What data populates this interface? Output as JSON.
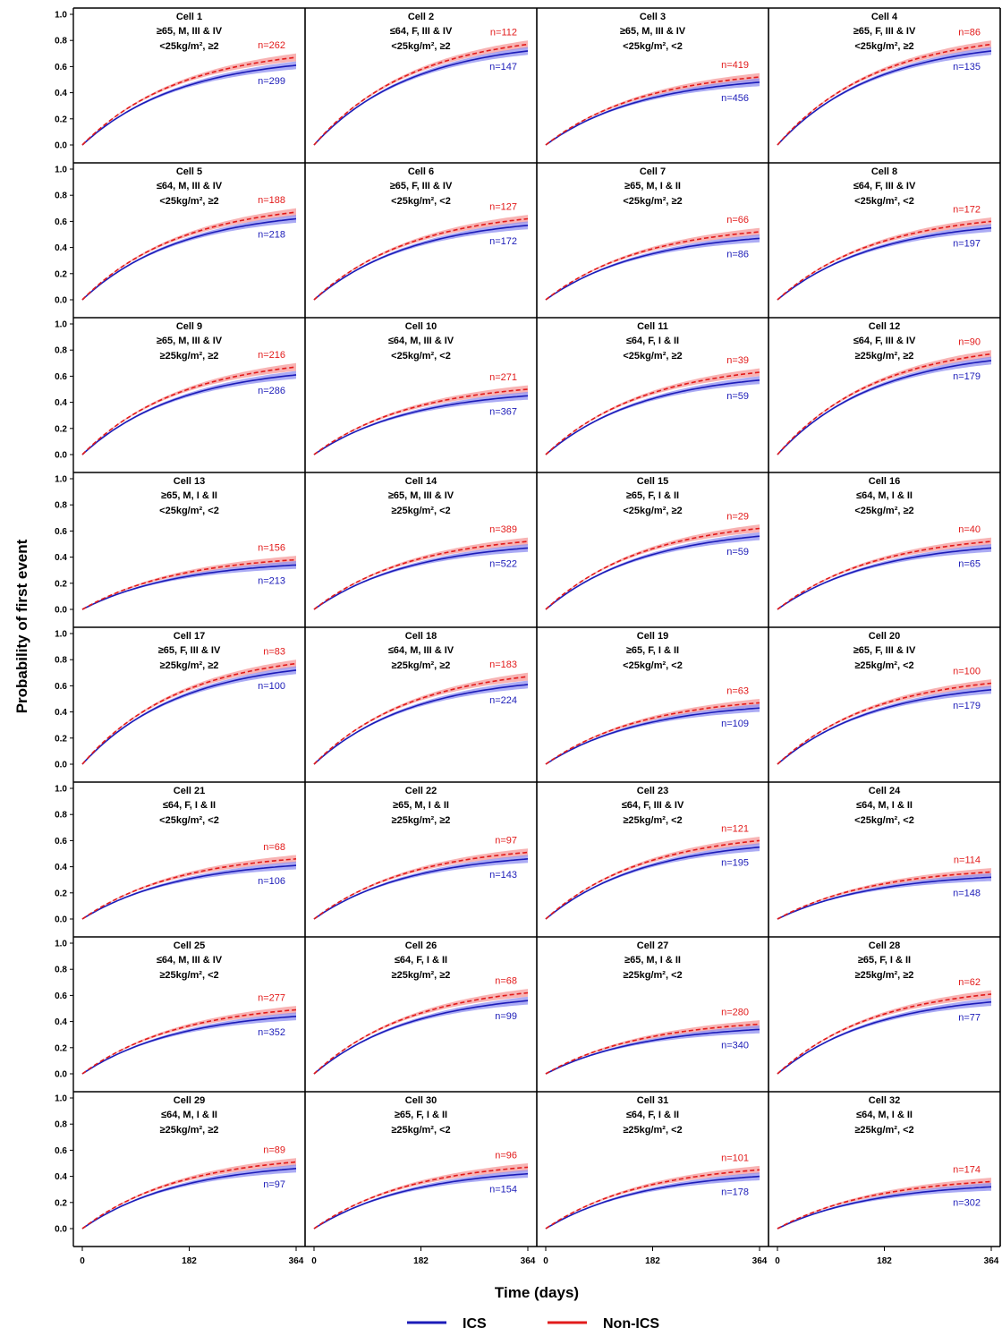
{
  "figure": {
    "ylabel": "Probability of first event",
    "xlabel": "Time (days)",
    "legend": [
      {
        "name": "ICS",
        "color": "#1c1cb8",
        "style": "solid"
      },
      {
        "name": "Non-ICS",
        "color": "#e21b1b",
        "style": "dashed"
      }
    ],
    "xticks": [
      "0",
      "182",
      "364"
    ],
    "yticks": [
      "0.0",
      "0.2",
      "0.4",
      "0.6",
      "0.8",
      "1.0"
    ],
    "band_colors": {
      "ics": "#8f8ff0",
      "non_ics": "#f59a9a"
    }
  },
  "chart_data": [
    {
      "type": "line",
      "title": "Cell 1",
      "subtitle": [
        "≥65, M, III & IV",
        "<25kg/m², ≥2"
      ],
      "xlim": [
        0,
        364
      ],
      "ylim": [
        0,
        1
      ],
      "x": [
        0,
        364
      ],
      "series": [
        {
          "name": "ICS",
          "n": "n=299",
          "final_y": 0.61
        },
        {
          "name": "Non-ICS",
          "n": "n=262",
          "final_y": 0.67
        }
      ]
    },
    {
      "type": "line",
      "title": "Cell 2",
      "subtitle": [
        "≤64, F, III & IV",
        "<25kg/m², ≥2"
      ],
      "xlim": [
        0,
        364
      ],
      "ylim": [
        0,
        1
      ],
      "x": [
        0,
        364
      ],
      "series": [
        {
          "name": "ICS",
          "n": "n=147",
          "final_y": 0.72
        },
        {
          "name": "Non-ICS",
          "n": "n=112",
          "final_y": 0.77
        }
      ]
    },
    {
      "type": "line",
      "title": "Cell 3",
      "subtitle": [
        "≥65, M, III & IV",
        "<25kg/m², <2"
      ],
      "xlim": [
        0,
        364
      ],
      "ylim": [
        0,
        1
      ],
      "x": [
        0,
        364
      ],
      "series": [
        {
          "name": "ICS",
          "n": "n=456",
          "final_y": 0.48
        },
        {
          "name": "Non-ICS",
          "n": "n=419",
          "final_y": 0.52
        }
      ]
    },
    {
      "type": "line",
      "title": "Cell 4",
      "subtitle": [
        "≥65, F, III & IV",
        "<25kg/m², ≥2"
      ],
      "xlim": [
        0,
        364
      ],
      "ylim": [
        0,
        1
      ],
      "x": [
        0,
        364
      ],
      "series": [
        {
          "name": "ICS",
          "n": "n=135",
          "final_y": 0.72
        },
        {
          "name": "Non-ICS",
          "n": "n=86",
          "final_y": 0.77
        }
      ]
    },
    {
      "type": "line",
      "title": "Cell 5",
      "subtitle": [
        "≤64, M, III & IV",
        "<25kg/m², ≥2"
      ],
      "xlim": [
        0,
        364
      ],
      "ylim": [
        0,
        1
      ],
      "x": [
        0,
        364
      ],
      "series": [
        {
          "name": "ICS",
          "n": "n=218",
          "final_y": 0.62
        },
        {
          "name": "Non-ICS",
          "n": "n=188",
          "final_y": 0.67
        }
      ]
    },
    {
      "type": "line",
      "title": "Cell 6",
      "subtitle": [
        "≥65, F, III & IV",
        "<25kg/m², <2"
      ],
      "xlim": [
        0,
        364
      ],
      "ylim": [
        0,
        1
      ],
      "x": [
        0,
        364
      ],
      "series": [
        {
          "name": "ICS",
          "n": "n=172",
          "final_y": 0.57
        },
        {
          "name": "Non-ICS",
          "n": "n=127",
          "final_y": 0.62
        }
      ]
    },
    {
      "type": "line",
      "title": "Cell 7",
      "subtitle": [
        "≥65, M, I & II",
        "<25kg/m², ≥2"
      ],
      "xlim": [
        0,
        364
      ],
      "ylim": [
        0,
        1
      ],
      "x": [
        0,
        364
      ],
      "series": [
        {
          "name": "ICS",
          "n": "n=86",
          "final_y": 0.47
        },
        {
          "name": "Non-ICS",
          "n": "n=66",
          "final_y": 0.52
        }
      ]
    },
    {
      "type": "line",
      "title": "Cell 8",
      "subtitle": [
        "≤64, F, III & IV",
        "<25kg/m², <2"
      ],
      "xlim": [
        0,
        364
      ],
      "ylim": [
        0,
        1
      ],
      "x": [
        0,
        364
      ],
      "series": [
        {
          "name": "ICS",
          "n": "n=197",
          "final_y": 0.55
        },
        {
          "name": "Non-ICS",
          "n": "n=172",
          "final_y": 0.6
        }
      ]
    },
    {
      "type": "line",
      "title": "Cell 9",
      "subtitle": [
        "≥65, M, III & IV",
        "≥25kg/m², ≥2"
      ],
      "xlim": [
        0,
        364
      ],
      "ylim": [
        0,
        1
      ],
      "x": [
        0,
        364
      ],
      "series": [
        {
          "name": "ICS",
          "n": "n=286",
          "final_y": 0.61
        },
        {
          "name": "Non-ICS",
          "n": "n=216",
          "final_y": 0.67
        }
      ]
    },
    {
      "type": "line",
      "title": "Cell 10",
      "subtitle": [
        "≤64, M, III & IV",
        "<25kg/m², <2"
      ],
      "xlim": [
        0,
        364
      ],
      "ylim": [
        0,
        1
      ],
      "x": [
        0,
        364
      ],
      "series": [
        {
          "name": "ICS",
          "n": "n=367",
          "final_y": 0.45
        },
        {
          "name": "Non-ICS",
          "n": "n=271",
          "final_y": 0.5
        }
      ]
    },
    {
      "type": "line",
      "title": "Cell 11",
      "subtitle": [
        "≤64, F, I & II",
        "<25kg/m², ≥2"
      ],
      "xlim": [
        0,
        364
      ],
      "ylim": [
        0,
        1
      ],
      "x": [
        0,
        364
      ],
      "series": [
        {
          "name": "ICS",
          "n": "n=59",
          "final_y": 0.57
        },
        {
          "name": "Non-ICS",
          "n": "n=39",
          "final_y": 0.63
        }
      ]
    },
    {
      "type": "line",
      "title": "Cell 12",
      "subtitle": [
        "≤64, F, III & IV",
        "≥25kg/m², ≥2"
      ],
      "xlim": [
        0,
        364
      ],
      "ylim": [
        0,
        1
      ],
      "x": [
        0,
        364
      ],
      "series": [
        {
          "name": "ICS",
          "n": "n=179",
          "final_y": 0.72
        },
        {
          "name": "Non-ICS",
          "n": "n=90",
          "final_y": 0.77
        }
      ]
    },
    {
      "type": "line",
      "title": "Cell 13",
      "subtitle": [
        "≥65, M, I & II",
        "<25kg/m², <2"
      ],
      "xlim": [
        0,
        364
      ],
      "ylim": [
        0,
        1
      ],
      "x": [
        0,
        364
      ],
      "series": [
        {
          "name": "ICS",
          "n": "n=213",
          "final_y": 0.34
        },
        {
          "name": "Non-ICS",
          "n": "n=156",
          "final_y": 0.38
        }
      ]
    },
    {
      "type": "line",
      "title": "Cell 14",
      "subtitle": [
        "≥65, M, III & IV",
        "≥25kg/m², <2"
      ],
      "xlim": [
        0,
        364
      ],
      "ylim": [
        0,
        1
      ],
      "x": [
        0,
        364
      ],
      "series": [
        {
          "name": "ICS",
          "n": "n=522",
          "final_y": 0.47
        },
        {
          "name": "Non-ICS",
          "n": "n=389",
          "final_y": 0.52
        }
      ]
    },
    {
      "type": "line",
      "title": "Cell 15",
      "subtitle": [
        "≥65, F, I & II",
        "<25kg/m², ≥2"
      ],
      "xlim": [
        0,
        364
      ],
      "ylim": [
        0,
        1
      ],
      "x": [
        0,
        364
      ],
      "series": [
        {
          "name": "ICS",
          "n": "n=59",
          "final_y": 0.56
        },
        {
          "name": "Non-ICS",
          "n": "n=29",
          "final_y": 0.62
        }
      ]
    },
    {
      "type": "line",
      "title": "Cell 16",
      "subtitle": [
        "≤64, M, I & II",
        "<25kg/m², ≥2"
      ],
      "xlim": [
        0,
        364
      ],
      "ylim": [
        0,
        1
      ],
      "x": [
        0,
        364
      ],
      "series": [
        {
          "name": "ICS",
          "n": "n=65",
          "final_y": 0.47
        },
        {
          "name": "Non-ICS",
          "n": "n=40",
          "final_y": 0.52
        }
      ]
    },
    {
      "type": "line",
      "title": "Cell 17",
      "subtitle": [
        "≥65, F, III & IV",
        "≥25kg/m², ≥2"
      ],
      "xlim": [
        0,
        364
      ],
      "ylim": [
        0,
        1
      ],
      "x": [
        0,
        364
      ],
      "series": [
        {
          "name": "ICS",
          "n": "n=100",
          "final_y": 0.72
        },
        {
          "name": "Non-ICS",
          "n": "n=83",
          "final_y": 0.77
        }
      ]
    },
    {
      "type": "line",
      "title": "Cell 18",
      "subtitle": [
        "≤64, M, III & IV",
        "≥25kg/m², ≥2"
      ],
      "xlim": [
        0,
        364
      ],
      "ylim": [
        0,
        1
      ],
      "x": [
        0,
        364
      ],
      "series": [
        {
          "name": "ICS",
          "n": "n=224",
          "final_y": 0.61
        },
        {
          "name": "Non-ICS",
          "n": "n=183",
          "final_y": 0.67
        }
      ]
    },
    {
      "type": "line",
      "title": "Cell 19",
      "subtitle": [
        "≥65, F, I & II",
        "<25kg/m², <2"
      ],
      "xlim": [
        0,
        364
      ],
      "ylim": [
        0,
        1
      ],
      "x": [
        0,
        364
      ],
      "series": [
        {
          "name": "ICS",
          "n": "n=109",
          "final_y": 0.43
        },
        {
          "name": "Non-ICS",
          "n": "n=63",
          "final_y": 0.47
        }
      ]
    },
    {
      "type": "line",
      "title": "Cell 20",
      "subtitle": [
        "≥65, F, III & IV",
        "≥25kg/m², <2"
      ],
      "xlim": [
        0,
        364
      ],
      "ylim": [
        0,
        1
      ],
      "x": [
        0,
        364
      ],
      "series": [
        {
          "name": "ICS",
          "n": "n=179",
          "final_y": 0.57
        },
        {
          "name": "Non-ICS",
          "n": "n=100",
          "final_y": 0.62
        }
      ]
    },
    {
      "type": "line",
      "title": "Cell 21",
      "subtitle": [
        "≤64, F, I & II",
        "<25kg/m², <2"
      ],
      "xlim": [
        0,
        364
      ],
      "ylim": [
        0,
        1
      ],
      "x": [
        0,
        364
      ],
      "series": [
        {
          "name": "ICS",
          "n": "n=106",
          "final_y": 0.41
        },
        {
          "name": "Non-ICS",
          "n": "n=68",
          "final_y": 0.46
        }
      ]
    },
    {
      "type": "line",
      "title": "Cell 22",
      "subtitle": [
        "≥65, M, I & II",
        "≥25kg/m², ≥2"
      ],
      "xlim": [
        0,
        364
      ],
      "ylim": [
        0,
        1
      ],
      "x": [
        0,
        364
      ],
      "series": [
        {
          "name": "ICS",
          "n": "n=143",
          "final_y": 0.46
        },
        {
          "name": "Non-ICS",
          "n": "n=97",
          "final_y": 0.51
        }
      ]
    },
    {
      "type": "line",
      "title": "Cell 23",
      "subtitle": [
        "≤64, F, III & IV",
        "≥25kg/m², <2"
      ],
      "xlim": [
        0,
        364
      ],
      "ylim": [
        0,
        1
      ],
      "x": [
        0,
        364
      ],
      "series": [
        {
          "name": "ICS",
          "n": "n=195",
          "final_y": 0.55
        },
        {
          "name": "Non-ICS",
          "n": "n=121",
          "final_y": 0.6
        }
      ]
    },
    {
      "type": "line",
      "title": "Cell 24",
      "subtitle": [
        "≤64, M, I & II",
        "<25kg/m², <2"
      ],
      "xlim": [
        0,
        364
      ],
      "ylim": [
        0,
        1
      ],
      "x": [
        0,
        364
      ],
      "series": [
        {
          "name": "ICS",
          "n": "n=148",
          "final_y": 0.32
        },
        {
          "name": "Non-ICS",
          "n": "n=114",
          "final_y": 0.36
        }
      ]
    },
    {
      "type": "line",
      "title": "Cell 25",
      "subtitle": [
        "≤64, M, III & IV",
        "≥25kg/m², <2"
      ],
      "xlim": [
        0,
        364
      ],
      "ylim": [
        0,
        1
      ],
      "x": [
        0,
        364
      ],
      "series": [
        {
          "name": "ICS",
          "n": "n=352",
          "final_y": 0.44
        },
        {
          "name": "Non-ICS",
          "n": "n=277",
          "final_y": 0.49
        }
      ]
    },
    {
      "type": "line",
      "title": "Cell 26",
      "subtitle": [
        "≤64, F, I & II",
        "≥25kg/m², ≥2"
      ],
      "xlim": [
        0,
        364
      ],
      "ylim": [
        0,
        1
      ],
      "x": [
        0,
        364
      ],
      "series": [
        {
          "name": "ICS",
          "n": "n=99",
          "final_y": 0.56
        },
        {
          "name": "Non-ICS",
          "n": "n=68",
          "final_y": 0.62
        }
      ]
    },
    {
      "type": "line",
      "title": "Cell 27",
      "subtitle": [
        "≥65, M, I & II",
        "≥25kg/m², <2"
      ],
      "xlim": [
        0,
        364
      ],
      "ylim": [
        0,
        1
      ],
      "x": [
        0,
        364
      ],
      "series": [
        {
          "name": "ICS",
          "n": "n=340",
          "final_y": 0.34
        },
        {
          "name": "Non-ICS",
          "n": "n=280",
          "final_y": 0.38
        }
      ]
    },
    {
      "type": "line",
      "title": "Cell 28",
      "subtitle": [
        "≥65, F, I & II",
        "≥25kg/m², ≥2"
      ],
      "xlim": [
        0,
        364
      ],
      "ylim": [
        0,
        1
      ],
      "x": [
        0,
        364
      ],
      "series": [
        {
          "name": "ICS",
          "n": "n=77",
          "final_y": 0.55
        },
        {
          "name": "Non-ICS",
          "n": "n=62",
          "final_y": 0.61
        }
      ]
    },
    {
      "type": "line",
      "title": "Cell 29",
      "subtitle": [
        "≤64, M, I & II",
        "≥25kg/m², ≥2"
      ],
      "xlim": [
        0,
        364
      ],
      "ylim": [
        0,
        1
      ],
      "x": [
        0,
        364
      ],
      "series": [
        {
          "name": "ICS",
          "n": "n=97",
          "final_y": 0.46
        },
        {
          "name": "Non-ICS",
          "n": "n=89",
          "final_y": 0.51
        }
      ]
    },
    {
      "type": "line",
      "title": "Cell 30",
      "subtitle": [
        "≥65, F, I & II",
        "≥25kg/m², <2"
      ],
      "xlim": [
        0,
        364
      ],
      "ylim": [
        0,
        1
      ],
      "x": [
        0,
        364
      ],
      "series": [
        {
          "name": "ICS",
          "n": "n=154",
          "final_y": 0.42
        },
        {
          "name": "Non-ICS",
          "n": "n=96",
          "final_y": 0.47
        }
      ]
    },
    {
      "type": "line",
      "title": "Cell 31",
      "subtitle": [
        "≤64, F, I & II",
        "≥25kg/m², <2"
      ],
      "xlim": [
        0,
        364
      ],
      "ylim": [
        0,
        1
      ],
      "x": [
        0,
        364
      ],
      "series": [
        {
          "name": "ICS",
          "n": "n=178",
          "final_y": 0.4
        },
        {
          "name": "Non-ICS",
          "n": "n=101",
          "final_y": 0.45
        }
      ]
    },
    {
      "type": "line",
      "title": "Cell 32",
      "subtitle": [
        "≤64, M, I & II",
        "≥25kg/m², <2"
      ],
      "xlim": [
        0,
        364
      ],
      "ylim": [
        0,
        1
      ],
      "x": [
        0,
        364
      ],
      "series": [
        {
          "name": "ICS",
          "n": "n=302",
          "final_y": 0.32
        },
        {
          "name": "Non-ICS",
          "n": "n=174",
          "final_y": 0.36
        }
      ]
    }
  ]
}
